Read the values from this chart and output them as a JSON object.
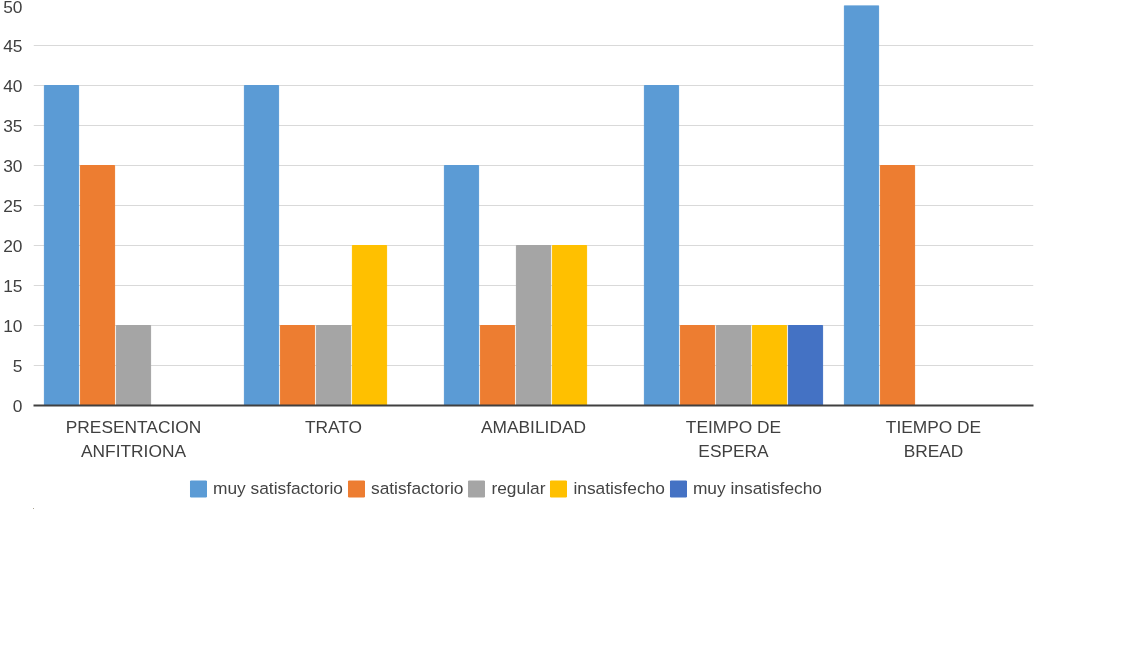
{
  "chart_data": {
    "type": "bar",
    "categories": [
      "PRESENTACION ANFITRIONA",
      "TRATO",
      "AMABILIDAD",
      "TEIMPO DE ESPERA",
      "TIEMPO DE BREAD"
    ],
    "series": [
      {
        "name": "muy satisfactorio",
        "color": "#5b9bd5",
        "values": [
          40,
          40,
          30,
          40,
          50
        ]
      },
      {
        "name": "satisfactorio",
        "color": "#ed7d31",
        "values": [
          30,
          10,
          10,
          10,
          30
        ]
      },
      {
        "name": "regular",
        "color": "#a5a5a5",
        "values": [
          10,
          10,
          20,
          10,
          0
        ]
      },
      {
        "name": "insatisfecho",
        "color": "#ffc000",
        "values": [
          0,
          20,
          20,
          10,
          0
        ]
      },
      {
        "name": "muy insatisfecho",
        "color": "#4472c4",
        "values": [
          0,
          0,
          0,
          10,
          null
        ]
      }
    ],
    "ylim": [
      0,
      50
    ],
    "yticks": [
      0,
      5,
      10,
      15,
      20,
      25,
      30,
      35,
      40,
      45,
      50
    ],
    "grid": "y",
    "legend": "bottom"
  }
}
